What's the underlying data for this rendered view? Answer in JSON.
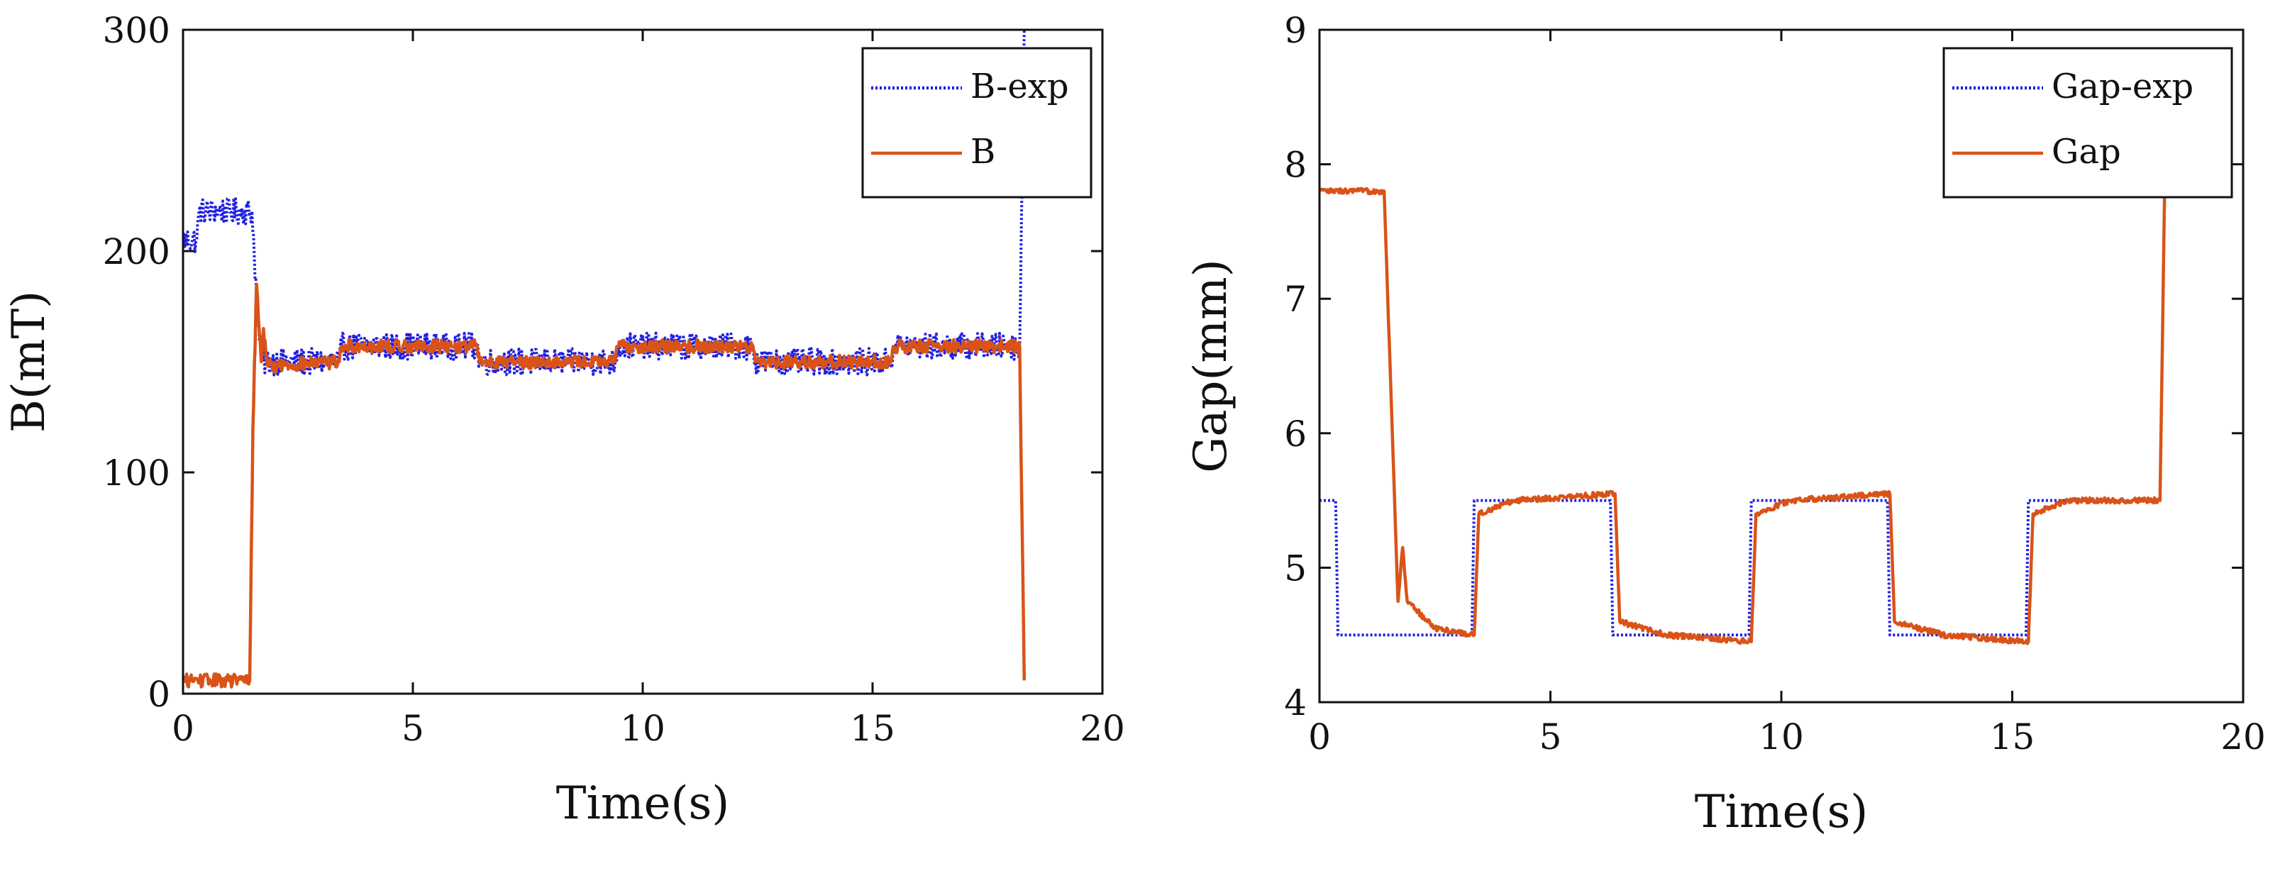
{
  "chart_data": [
    {
      "id": "b-chart",
      "type": "line",
      "title": "",
      "xlabel": "Time(s)",
      "ylabel": "B(mT)",
      "xlim": [
        0,
        20
      ],
      "ylim": [
        0,
        300
      ],
      "xticks": [
        0,
        5,
        10,
        15,
        20
      ],
      "yticks": [
        0,
        100,
        200,
        300
      ],
      "legend_position": "top-right",
      "series": [
        {
          "name": "B-exp",
          "style": "dotted",
          "color": "#1f1fe0",
          "noise": 6,
          "points": [
            [
              0,
              205
            ],
            [
              0.3,
              205
            ],
            [
              0.35,
              218
            ],
            [
              1.5,
              218
            ],
            [
              1.6,
              180
            ],
            [
              1.7,
              150
            ],
            [
              3.4,
              150
            ],
            [
              3.45,
              157
            ],
            [
              6.4,
              157
            ],
            [
              6.45,
              150
            ],
            [
              9.4,
              150
            ],
            [
              9.45,
              157
            ],
            [
              12.4,
              157
            ],
            [
              12.45,
              150
            ],
            [
              15.4,
              150
            ],
            [
              15.45,
              157
            ],
            [
              18.2,
              157
            ],
            [
              18.3,
              300
            ]
          ]
        },
        {
          "name": "B",
          "style": "solid",
          "color": "#d95319",
          "noise": 3,
          "points": [
            [
              0,
              6
            ],
            [
              1.45,
              6
            ],
            [
              1.52,
              120
            ],
            [
              1.6,
              185
            ],
            [
              1.7,
              150
            ],
            [
              1.75,
              165
            ],
            [
              1.85,
              148
            ],
            [
              3.4,
              150
            ],
            [
              3.45,
              157
            ],
            [
              6.4,
              157
            ],
            [
              6.45,
              150
            ],
            [
              9.4,
              150
            ],
            [
              9.45,
              157
            ],
            [
              12.4,
              157
            ],
            [
              12.45,
              150
            ],
            [
              15.4,
              150
            ],
            [
              15.45,
              157
            ],
            [
              18.2,
              157
            ],
            [
              18.25,
              80
            ],
            [
              18.3,
              6
            ]
          ]
        }
      ]
    },
    {
      "id": "gap-chart",
      "type": "line",
      "title": "",
      "xlabel": "Time(s)",
      "ylabel": "Gap(mm)",
      "xlim": [
        0,
        20
      ],
      "ylim": [
        4,
        9
      ],
      "xticks": [
        0,
        5,
        10,
        15,
        20
      ],
      "yticks": [
        4,
        5,
        6,
        7,
        8,
        9
      ],
      "legend_position": "top-right",
      "series": [
        {
          "name": "Gap-exp",
          "style": "dotted",
          "color": "#1f1fe0",
          "noise": 0,
          "points": [
            [
              0,
              5.5
            ],
            [
              0.35,
              5.5
            ],
            [
              0.4,
              4.5
            ],
            [
              3.3,
              4.5
            ],
            [
              3.35,
              5.5
            ],
            [
              6.3,
              5.5
            ],
            [
              6.35,
              4.5
            ],
            [
              9.3,
              4.5
            ],
            [
              9.35,
              5.5
            ],
            [
              12.3,
              5.5
            ],
            [
              12.35,
              4.5
            ],
            [
              15.3,
              4.5
            ],
            [
              15.35,
              5.5
            ],
            [
              18.2,
              5.5
            ]
          ]
        },
        {
          "name": "Gap",
          "style": "solid",
          "color": "#d95319",
          "noise": 0.02,
          "points": [
            [
              0,
              7.8
            ],
            [
              1.4,
              7.8
            ],
            [
              1.7,
              4.75
            ],
            [
              1.8,
              5.15
            ],
            [
              1.9,
              4.75
            ],
            [
              2.5,
              4.55
            ],
            [
              3.35,
              4.5
            ],
            [
              3.45,
              5.4
            ],
            [
              4.2,
              5.5
            ],
            [
              6.4,
              5.55
            ],
            [
              6.5,
              4.6
            ],
            [
              7.5,
              4.5
            ],
            [
              9.35,
              4.45
            ],
            [
              9.45,
              5.4
            ],
            [
              10.2,
              5.5
            ],
            [
              12.35,
              5.55
            ],
            [
              12.45,
              4.6
            ],
            [
              13.5,
              4.5
            ],
            [
              15.35,
              4.45
            ],
            [
              15.45,
              5.4
            ],
            [
              16.2,
              5.5
            ],
            [
              18.2,
              5.5
            ],
            [
              18.3,
              7.8
            ]
          ]
        }
      ]
    }
  ]
}
